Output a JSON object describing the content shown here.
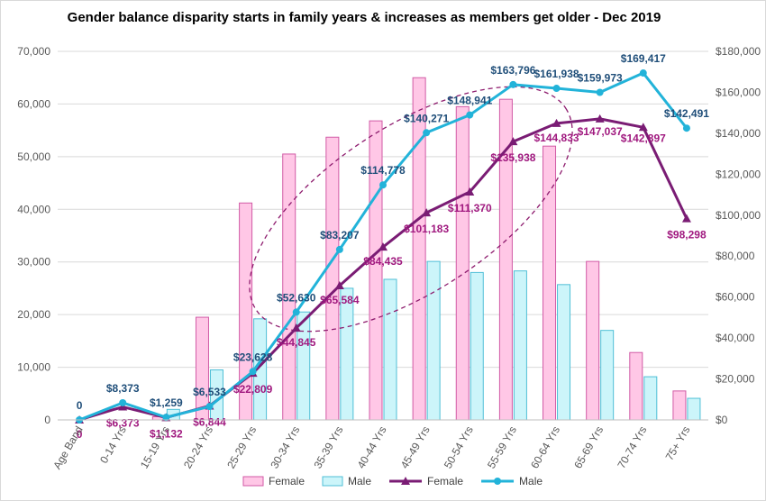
{
  "chart_data": {
    "type": "bar",
    "title": "Gender balance  disparity starts in family years & increases as members get older - Dec 2019",
    "categories": [
      "Age Band",
      "0-14 Yrs",
      "15-19 Yrs",
      "20-24 Yrs",
      "25-29 Yrs",
      "30-34 Yrs",
      "35-39 Yrs",
      "40-44 Yrs",
      "45-49 Yrs",
      "50-54 Yrs",
      "55-59 Yrs",
      "60-64 Yrs",
      "65-69 Yrs",
      "70-74 Yrs",
      "75+ Yrs"
    ],
    "left_axis": {
      "min": 0,
      "max": 70000,
      "step": 10000,
      "ticks": [
        "0",
        "10,000",
        "20,000",
        "30,000",
        "40,000",
        "50,000",
        "60,000",
        "70,000"
      ]
    },
    "right_axis": {
      "min": 0,
      "max": 180000,
      "step": 20000,
      "ticks": [
        "$0",
        "$20,000",
        "$40,000",
        "$60,000",
        "$80,000",
        "$100,000",
        "$120,000",
        "$140,000",
        "$160,000",
        "$180,000"
      ]
    },
    "series": [
      {
        "name": "Female",
        "kind": "bar",
        "axis": "left",
        "color": "#ffc7e6",
        "stroke": "#d15aa5",
        "values": [
          0,
          0,
          600,
          19500,
          41200,
          50500,
          53700,
          56800,
          65000,
          59500,
          60900,
          52000,
          30100,
          12800,
          5500
        ]
      },
      {
        "name": "Male",
        "kind": "bar",
        "axis": "left",
        "color": "#ccf5fa",
        "stroke": "#4fbfd6",
        "values": [
          0,
          0,
          2000,
          9500,
          19200,
          20500,
          25000,
          26700,
          30100,
          28000,
          28300,
          25700,
          17000,
          8200,
          4100
        ]
      },
      {
        "name": "Female",
        "kind": "line",
        "axis": "right",
        "color": "#7a1c74",
        "marker": "triangle",
        "values": [
          0,
          6373,
          1132,
          6844,
          22809,
          44845,
          65584,
          84435,
          101183,
          111370,
          135938,
          144833,
          147037,
          142897,
          98298
        ],
        "labels": [
          "0",
          "$6,373",
          "$1,132",
          "$6,844",
          "$22,809",
          "$44,845",
          "$65,584",
          "$84,435",
          "$101,183",
          "$111,370",
          "$135,938",
          "$144,833",
          "$147,037",
          "$142,897",
          "$98,298"
        ],
        "label_color": "#a0197f"
      },
      {
        "name": "Male",
        "kind": "line",
        "axis": "right",
        "color": "#22b3d9",
        "marker": "circle",
        "values": [
          0,
          8373,
          1259,
          6533,
          23628,
          52630,
          83207,
          114778,
          140271,
          148941,
          163796,
          161938,
          159973,
          169417,
          142491
        ],
        "labels": [
          "0",
          "$8,373",
          "$1,259",
          "$6,533",
          "$23,628",
          "$52,630",
          "$83,207",
          "$114,778",
          "$140,271",
          "$148,941",
          "$163,796",
          "$161,938",
          "$159,973",
          "$169,417",
          "$142,491"
        ],
        "label_color": "#1f4e79"
      }
    ],
    "legend": [
      "Female",
      "Male",
      "Female",
      "Male"
    ],
    "legend_position": "bottom",
    "annotation": {
      "type": "dashed-ellipse",
      "color": "#8e1c6e"
    },
    "grid": true
  }
}
